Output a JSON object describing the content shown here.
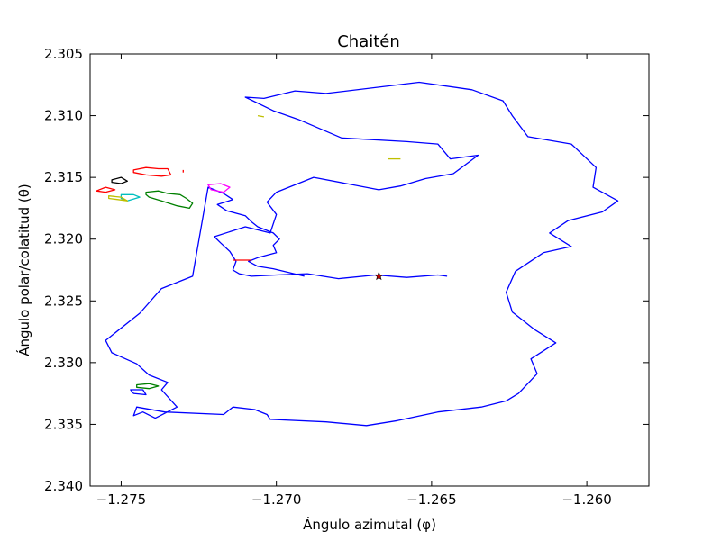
{
  "chart_data": {
    "type": "line",
    "title": "Chaitén",
    "xlabel": "Ángulo azimutal (φ)",
    "ylabel": "Ángulo polar/colatitud (θ)",
    "xlim": [
      -1.276,
      -1.258
    ],
    "ylim": [
      2.34,
      2.305
    ],
    "y_inverted": true,
    "grid": false,
    "legend": "none",
    "x_ticks": [
      -1.275,
      -1.27,
      -1.265,
      -1.26
    ],
    "x_tick_labels": [
      "−1.275",
      "−1.270",
      "−1.265",
      "−1.260"
    ],
    "y_ticks": [
      2.305,
      2.31,
      2.315,
      2.32,
      2.325,
      2.33,
      2.335,
      2.34
    ],
    "y_tick_labels": [
      "2.305",
      "2.310",
      "2.315",
      "2.320",
      "2.325",
      "2.330",
      "2.335",
      "2.340"
    ],
    "series": [
      {
        "color": "#0000ff",
        "closed": false,
        "x": [
          -1.2691,
          -1.2701,
          -1.2706,
          -1.2709,
          -1.2706,
          -1.2703,
          -1.27,
          -1.2701,
          -1.2699,
          -1.2701,
          -1.2706,
          -1.2708,
          -1.271,
          -1.2716,
          -1.2719,
          -1.2714,
          -1.2717,
          -1.272,
          -1.2722,
          -1.2727,
          -1.2737,
          -1.2744,
          -1.2755,
          -1.2753,
          -1.2745,
          -1.2741,
          -1.2735,
          -1.2737,
          -1.2732,
          -1.2739,
          -1.2743,
          -1.2746,
          -1.2745,
          -1.2736,
          -1.2717,
          -1.2714,
          -1.2707,
          -1.2703,
          -1.2702,
          -1.2684,
          -1.2671,
          -1.2661,
          -1.2648,
          -1.2634,
          -1.2626,
          -1.2622,
          -1.2616,
          -1.2618,
          -1.261,
          -1.2617,
          -1.2624,
          -1.2626,
          -1.2623,
          -1.2614,
          -1.2605,
          -1.2612,
          -1.2606,
          -1.2595,
          -1.259,
          -1.2598,
          -1.2597,
          -1.2605,
          -1.2619,
          -1.2624,
          -1.2627,
          -1.2637,
          -1.2654,
          -1.2684,
          -1.2694,
          -1.2704,
          -1.271,
          -1.2701,
          -1.2693,
          -1.2679,
          -1.2658,
          -1.2648,
          -1.2644,
          -1.2635,
          -1.2643,
          -1.2652,
          -1.266,
          -1.2667,
          -1.2688,
          -1.27,
          -1.2703,
          -1.27,
          -1.2702,
          -1.271,
          -1.272,
          -1.2718,
          -1.2715,
          -1.2713,
          -1.2714,
          -1.2712,
          -1.2708,
          -1.27,
          -1.269,
          -1.268,
          -1.2668,
          -1.2658,
          -1.2648,
          -1.2645
        ],
        "y": [
          2.323,
          2.3224,
          2.3222,
          2.3218,
          2.3215,
          2.3213,
          2.3211,
          2.3205,
          2.32,
          2.3195,
          2.319,
          2.3186,
          2.3181,
          2.3177,
          2.3172,
          2.3168,
          2.3163,
          2.316,
          2.3158,
          2.323,
          2.324,
          2.326,
          2.3282,
          2.3292,
          2.3301,
          2.331,
          2.3316,
          2.3322,
          2.3336,
          2.3345,
          2.334,
          2.3343,
          2.3336,
          2.334,
          2.3342,
          2.3336,
          2.3338,
          2.3342,
          2.3346,
          2.3348,
          2.3351,
          2.3347,
          2.334,
          2.3336,
          2.3331,
          2.3325,
          2.3309,
          2.3297,
          2.3284,
          2.3273,
          2.3259,
          2.3243,
          2.3226,
          2.3211,
          2.3206,
          2.3195,
          2.3185,
          2.3178,
          2.3169,
          2.3158,
          2.3142,
          2.3123,
          2.3117,
          2.31,
          2.3088,
          2.3079,
          2.3073,
          2.3082,
          2.308,
          2.3086,
          2.3085,
          2.3096,
          2.3103,
          2.3118,
          2.3121,
          2.3123,
          2.3135,
          2.3132,
          2.3147,
          2.3151,
          2.3157,
          2.316,
          2.315,
          2.3162,
          2.317,
          2.318,
          2.3195,
          2.319,
          2.3198,
          2.3203,
          2.321,
          2.3218,
          2.3225,
          2.3228,
          2.323,
          2.3229,
          2.3228,
          2.3232,
          2.3229,
          2.3231,
          2.3229,
          2.323
        ]
      },
      {
        "color": "#ff0000",
        "closed": true,
        "x": [
          -1.2746,
          -1.2742,
          -1.2738,
          -1.2735,
          -1.2734,
          -1.2737,
          -1.2742,
          -1.2746
        ],
        "y": [
          2.3144,
          2.3142,
          2.3143,
          2.3143,
          2.3148,
          2.3149,
          2.3148,
          2.3146
        ]
      },
      {
        "color": "#ff0000",
        "closed": true,
        "x": [
          -1.2758,
          -1.2755,
          -1.2752,
          -1.2755
        ],
        "y": [
          2.3161,
          2.3158,
          2.316,
          2.3162
        ]
      },
      {
        "color": "#000000",
        "closed": true,
        "x": [
          -1.2753,
          -1.275,
          -1.2748,
          -1.275,
          -1.2753
        ],
        "y": [
          2.3152,
          2.315,
          2.3153,
          2.3155,
          2.3154
        ]
      },
      {
        "color": "#00bfbf",
        "closed": true,
        "x": [
          -1.275,
          -1.2746,
          -1.2744,
          -1.2748,
          -1.275
        ],
        "y": [
          2.3164,
          2.3164,
          2.3166,
          2.3169,
          2.3167
        ]
      },
      {
        "color": "#bfbf00",
        "closed": true,
        "x": [
          -1.2754,
          -1.275,
          -1.2748,
          -1.2751,
          -1.2754
        ],
        "y": [
          2.3165,
          2.3166,
          2.3169,
          2.3168,
          2.3167
        ]
      },
      {
        "color": "#008000",
        "closed": true,
        "x": [
          -1.2742,
          -1.2738,
          -1.2735,
          -1.2731,
          -1.2729,
          -1.2727,
          -1.2728,
          -1.2732,
          -1.2737,
          -1.2741,
          -1.2742
        ],
        "y": [
          2.3162,
          2.3161,
          2.3163,
          2.3164,
          2.3167,
          2.3171,
          2.3175,
          2.3173,
          2.3169,
          2.3166,
          2.3164
        ]
      },
      {
        "color": "#ff00ff",
        "closed": true,
        "x": [
          -1.2722,
          -1.2718,
          -1.2715,
          -1.2717,
          -1.2721
        ],
        "y": [
          2.3156,
          2.3155,
          2.3158,
          2.3162,
          2.316
        ]
      },
      {
        "color": "#ff0000",
        "closed": false,
        "x": [
          -1.2714,
          -1.2708
        ],
        "y": [
          2.3217,
          2.3217
        ]
      },
      {
        "color": "#bfbf00",
        "closed": false,
        "x": [
          -1.2706,
          -1.2704
        ],
        "y": [
          2.31,
          2.3101
        ]
      },
      {
        "color": "#bfbf00",
        "closed": false,
        "x": [
          -1.2664,
          -1.266
        ],
        "y": [
          2.3135,
          2.3135
        ]
      },
      {
        "color": "#ff0000",
        "closed": false,
        "x": [
          -1.273,
          -1.273
        ],
        "y": [
          2.3144,
          2.3146
        ]
      },
      {
        "color": "#008000",
        "closed": true,
        "x": [
          -1.2745,
          -1.2741,
          -1.2738,
          -1.2741,
          -1.2745
        ],
        "y": [
          2.3318,
          2.3317,
          2.3319,
          2.3321,
          2.332
        ]
      },
      {
        "color": "#0000ff",
        "closed": true,
        "x": [
          -1.2747,
          -1.2743,
          -1.2742,
          -1.2746
        ],
        "y": [
          2.3322,
          2.3322,
          2.3326,
          2.3325
        ]
      }
    ],
    "marker": {
      "x": -1.2667,
      "y": 2.323,
      "symbol": "star",
      "color": "#c00000"
    }
  }
}
